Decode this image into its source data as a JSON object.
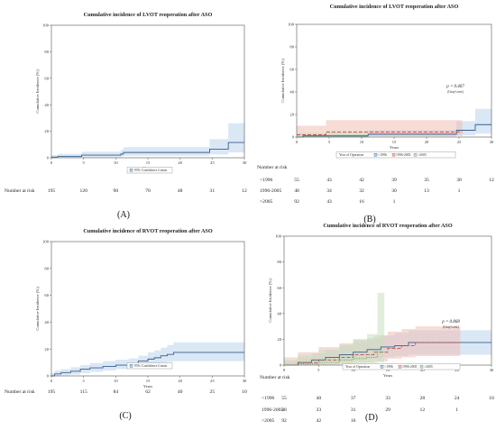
{
  "chart_data": [
    {
      "id": "A",
      "type": "line",
      "panel_label": "(A)",
      "title": "Cumulative incidence of LVOT reoperation after ASO",
      "xlabel": "Years",
      "ylabel": "Cumulative Incidence (%)",
      "xlim": [
        0,
        30
      ],
      "ylim": [
        0,
        100
      ],
      "xticks": [
        0,
        5,
        10,
        15,
        20,
        25,
        30
      ],
      "yticks": [
        0,
        20,
        40,
        60,
        80,
        100
      ],
      "legend": {
        "position": "bottom-center",
        "entries": [
          "95% Confidence Limits"
        ]
      },
      "series": [
        {
          "color": "#3a5f8f",
          "band_color": "#bcd4ec",
          "x": [
            0,
            1,
            4.7,
            10.8,
            11.2,
            24.6,
            27.5,
            30
          ],
          "y": [
            0.5,
            1,
            2,
            2.8,
            4,
            6.5,
            11.5,
            11.5
          ],
          "lower": [
            0,
            0,
            0.5,
            1,
            1.5,
            2.5,
            4,
            4
          ],
          "upper": [
            2,
            3,
            4.5,
            6,
            8,
            14,
            26,
            26
          ]
        }
      ],
      "risk_table": {
        "label": "Number at risk",
        "rows": [
          {
            "name": "",
            "values": [
              "195",
              "120",
              "90",
              "70",
              "48",
              "31",
              "12"
            ]
          }
        ]
      }
    },
    {
      "id": "B",
      "type": "line",
      "panel_label": "(B)",
      "title": "Cumulative incidence of LVOT reoperation after ASO",
      "xlabel": "Years",
      "ylabel": "Cumulative Incidence (%)",
      "xlim": [
        0,
        30
      ],
      "ylim": [
        0,
        100
      ],
      "xticks": [
        0,
        5,
        10,
        15,
        20,
        25,
        30
      ],
      "yticks": [
        0,
        20,
        40,
        60,
        80,
        100
      ],
      "annotation": {
        "p": "p = 0.467",
        "test": "(Gray's test)"
      },
      "legend": {
        "position": "bottom-center",
        "title": "Year of Operation",
        "entries": [
          "<1996",
          "1996-2005",
          ">2005"
        ]
      },
      "series": [
        {
          "name": "<1996",
          "color": "#3a5f8f",
          "band_color": "#bcd4ec",
          "dash": "",
          "x": [
            0,
            1,
            11,
            24.6,
            27.5,
            30
          ],
          "y": [
            0,
            1,
            2.5,
            6,
            11,
            11
          ],
          "lower": [
            0,
            0,
            0.5,
            1.5,
            3,
            3
          ],
          "upper": [
            2,
            3,
            6,
            14,
            25,
            25
          ]
        },
        {
          "name": "1996-2005",
          "color": "#c0504d",
          "band_color": "#f0c0b4",
          "dash": "4,2",
          "x": [
            0,
            2,
            4.5,
            11,
            24.5,
            25.5
          ],
          "y": [
            2,
            2,
            4.5,
            4.5,
            4.5,
            4.5
          ],
          "lower": [
            0,
            0,
            1,
            1,
            1,
            1
          ],
          "upper": [
            10,
            10,
            15,
            15,
            15,
            15
          ]
        },
        {
          "name": ">2005",
          "color": "#5a9a58",
          "band_color": "#c6e2c0",
          "dash": "1,1.5",
          "x": [
            0,
            11
          ],
          "y": [
            0,
            0
          ],
          "lower": [
            0,
            0
          ],
          "upper": [
            4,
            4
          ]
        }
      ],
      "risk_table": {
        "label": "Number at risk",
        "rows": [
          {
            "name": "<1996",
            "values": [
              "55",
              "43",
              "42",
              "39",
              "35",
              "30",
              "12"
            ]
          },
          {
            "name": "1996-2005",
            "values": [
              "48",
              "34",
              "32",
              "30",
              "13",
              "1",
              ""
            ]
          },
          {
            "name": ">2005",
            "values": [
              "92",
              "43",
              "16",
              "1",
              "",
              "",
              ""
            ]
          }
        ]
      }
    },
    {
      "id": "C",
      "type": "line",
      "panel_label": "(C)",
      "title": "Cumulative incidence of RVOT reoperation after ASO",
      "xlabel": "Years",
      "ylabel": "Cumulative Incidence (%)",
      "xlim": [
        0,
        30
      ],
      "ylim": [
        0,
        100
      ],
      "xticks": [
        0,
        5,
        10,
        15,
        20,
        25,
        30
      ],
      "yticks": [
        0,
        20,
        40,
        60,
        80,
        100
      ],
      "legend": {
        "position": "bottom-center",
        "entries": [
          "95% Confidence Limits"
        ]
      },
      "series": [
        {
          "color": "#3a5f8f",
          "band_color": "#bcd4ec",
          "x": [
            0,
            0.5,
            1.5,
            3,
            4.5,
            6,
            8,
            10,
            12,
            13.5,
            15,
            16,
            17,
            18,
            19,
            30
          ],
          "y": [
            0,
            1.5,
            2.5,
            3.5,
            5,
            6,
            7,
            8,
            9,
            11,
            12.5,
            13.5,
            15,
            16,
            17.5,
            17.5
          ],
          "lower": [
            0,
            0,
            0.5,
            1,
            2,
            3,
            4,
            5,
            5.5,
            7,
            8,
            9,
            10,
            10.5,
            11,
            11
          ],
          "upper": [
            2,
            4,
            5,
            6.5,
            8,
            9.5,
            11,
            12,
            13,
            15,
            17.5,
            19,
            21,
            23,
            25,
            25
          ]
        }
      ],
      "risk_table": {
        "label": "Number at risk",
        "rows": [
          {
            "name": "",
            "values": [
              "195",
              "115",
              "84",
              "62",
              "40",
              "25",
              "10"
            ]
          }
        ]
      }
    },
    {
      "id": "D",
      "type": "line",
      "panel_label": "(D)",
      "title": "Cumulative incidence of RVOT reoperation after ASO",
      "xlabel": "Years",
      "ylabel": "Cumulative Incidence (%)",
      "xlim": [
        0,
        30
      ],
      "ylim": [
        0,
        100
      ],
      "xticks": [
        0,
        5,
        10,
        15,
        20,
        25,
        30
      ],
      "yticks": [
        0,
        20,
        40,
        60,
        80,
        100
      ],
      "annotation": {
        "p": "p = 0.868",
        "test": "(Gray's test)"
      },
      "legend": {
        "position": "top-left",
        "title": "Year of Operation",
        "entries": [
          "<1996",
          "1996-2005",
          ">2005"
        ]
      },
      "series": [
        {
          "name": "<1996",
          "color": "#3a5f8f",
          "band_color": "#bcd4ec",
          "dash": "",
          "x": [
            0,
            2,
            4,
            6,
            8,
            10,
            12,
            14,
            16,
            18,
            30
          ],
          "y": [
            0,
            2,
            4,
            6,
            8,
            10,
            12,
            14,
            15,
            17.5,
            17.5
          ],
          "lower": [
            0,
            0,
            1,
            2,
            3,
            4,
            5,
            6,
            7,
            8,
            8
          ],
          "upper": [
            3,
            6,
            9,
            12,
            15,
            18,
            21,
            23,
            25,
            27,
            27
          ]
        },
        {
          "name": "1996-2005",
          "color": "#c0504d",
          "band_color": "#f0c0b4",
          "dash": "4,2",
          "x": [
            0,
            2,
            5,
            8,
            10,
            13,
            15,
            17,
            19,
            25.5
          ],
          "y": [
            0,
            2,
            4,
            6,
            8,
            10,
            13,
            15,
            17.5,
            17.5
          ],
          "lower": [
            0,
            0,
            0.5,
            1,
            2,
            3,
            5,
            6,
            7,
            7
          ],
          "upper": [
            6,
            10,
            14,
            17,
            20,
            23,
            26,
            28,
            30,
            30
          ]
        },
        {
          "name": ">2005",
          "color": "#5a9a58",
          "band_color": "#c6e2c0",
          "dash": "1,1.5",
          "x": [
            0,
            2,
            5,
            8,
            10,
            12,
            13.5,
            14.5
          ],
          "y": [
            0,
            1,
            2,
            4,
            5,
            6,
            10,
            10
          ],
          "lower": [
            0,
            0,
            0,
            0.5,
            1,
            1.5,
            2,
            2
          ],
          "upper": [
            4,
            8,
            12,
            16,
            20,
            24,
            56,
            56
          ]
        }
      ],
      "risk_table": {
        "label": "Number at risk",
        "rows": [
          {
            "name": "<1996",
            "values": [
              "55",
              "40",
              "37",
              "33",
              "28",
              "24",
              "10"
            ]
          },
          {
            "name": "1996-2005",
            "values": [
              "48",
              "33",
              "31",
              "29",
              "12",
              "1",
              ""
            ]
          },
          {
            "name": ">2005",
            "values": [
              "92",
              "42",
              "16",
              "",
              "",
              "",
              ""
            ]
          }
        ]
      }
    }
  ]
}
